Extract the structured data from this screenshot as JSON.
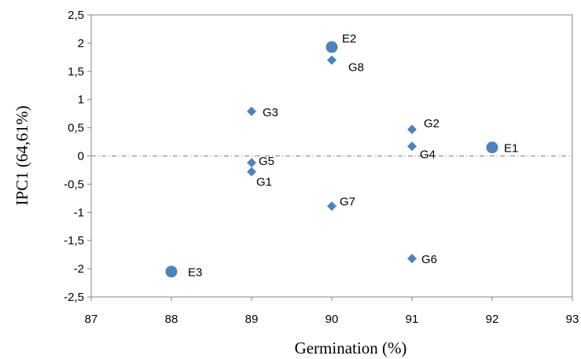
{
  "chart_data": {
    "type": "scatter",
    "title": "",
    "xlabel": "Germination (%)",
    "ylabel": "IPC1 (64,61%)",
    "xlim": [
      87,
      93
    ],
    "ylim": [
      -2.5,
      2.5
    ],
    "x_ticks": [
      87,
      88,
      89,
      90,
      91,
      92,
      93
    ],
    "y_ticks": [
      2.5,
      2,
      1.5,
      1,
      0.5,
      0,
      -0.5,
      -1,
      -1.5,
      -2,
      -2.5
    ],
    "x_tick_labels": [
      "87",
      "88",
      "89",
      "90",
      "91",
      "92",
      "93"
    ],
    "y_tick_labels": [
      "2,5",
      "2",
      "1,5",
      "1",
      "0,5",
      "0",
      "-0,5",
      "-1",
      "-1,5",
      "-2",
      "-2,5"
    ],
    "grid": false,
    "zero_line": true,
    "marker_color": "#4f81bd",
    "series": [
      {
        "marker": "circle",
        "points": [
          {
            "label": "E1",
            "x": 92,
            "y": 0.15
          },
          {
            "label": "E2",
            "x": 90,
            "y": 1.93
          },
          {
            "label": "E3",
            "x": 88,
            "y": -2.05
          }
        ]
      },
      {
        "marker": "diamond",
        "points": [
          {
            "label": "G1",
            "x": 89,
            "y": -0.28
          },
          {
            "label": "G2",
            "x": 91,
            "y": 0.47
          },
          {
            "label": "G3",
            "x": 89,
            "y": 0.79
          },
          {
            "label": "G4",
            "x": 91,
            "y": 0.17
          },
          {
            "label": "G5",
            "x": 89,
            "y": -0.12
          },
          {
            "label": "G6",
            "x": 91,
            "y": -1.82
          },
          {
            "label": "G7",
            "x": 90,
            "y": -0.89
          },
          {
            "label": "G8",
            "x": 90,
            "y": 1.7
          }
        ]
      }
    ]
  }
}
